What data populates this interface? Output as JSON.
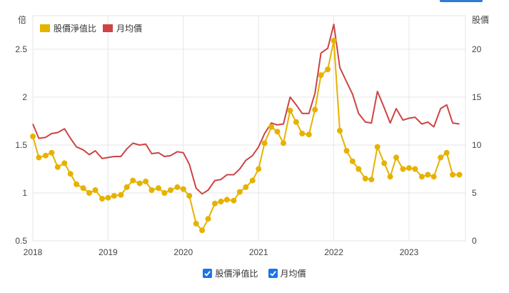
{
  "chart_data": {
    "type": "line",
    "left_axis": {
      "title": "倍",
      "ticks": [
        0.5,
        1,
        1.5,
        2,
        2.5
      ],
      "range": [
        0.5,
        2.85
      ]
    },
    "right_axis": {
      "title": "股價",
      "ticks": [
        0,
        5,
        10,
        15,
        20
      ],
      "range": [
        0,
        23.5
      ]
    },
    "x_labels": [
      "2018",
      "2019",
      "2020",
      "2021",
      "2022",
      "2023"
    ],
    "x_range": [
      2018.0,
      2023.75
    ],
    "series": [
      {
        "name": "股價淨值比",
        "axis": "left",
        "color": "#e6b200",
        "points": [
          [
            2018.0,
            1.59
          ],
          [
            2018.08,
            1.37
          ],
          [
            2018.17,
            1.39
          ],
          [
            2018.25,
            1.42
          ],
          [
            2018.33,
            1.27
          ],
          [
            2018.42,
            1.31
          ],
          [
            2018.5,
            1.2
          ],
          [
            2018.58,
            1.09
          ],
          [
            2018.67,
            1.05
          ],
          [
            2018.75,
            1.0
          ],
          [
            2018.83,
            1.03
          ],
          [
            2018.92,
            0.94
          ],
          [
            2019.0,
            0.95
          ],
          [
            2019.08,
            0.97
          ],
          [
            2019.17,
            0.98
          ],
          [
            2019.25,
            1.06
          ],
          [
            2019.33,
            1.13
          ],
          [
            2019.42,
            1.1
          ],
          [
            2019.5,
            1.12
          ],
          [
            2019.58,
            1.03
          ],
          [
            2019.67,
            1.05
          ],
          [
            2019.75,
            1.0
          ],
          [
            2019.83,
            1.03
          ],
          [
            2019.92,
            1.06
          ],
          [
            2020.0,
            1.04
          ],
          [
            2020.08,
            0.97
          ],
          [
            2020.17,
            0.68
          ],
          [
            2020.25,
            0.61
          ],
          [
            2020.33,
            0.73
          ],
          [
            2020.42,
            0.89
          ],
          [
            2020.5,
            0.91
          ],
          [
            2020.58,
            0.93
          ],
          [
            2020.67,
            0.92
          ],
          [
            2020.75,
            1.01
          ],
          [
            2020.83,
            1.06
          ],
          [
            2020.92,
            1.13
          ],
          [
            2021.0,
            1.25
          ],
          [
            2021.08,
            1.52
          ],
          [
            2021.17,
            1.69
          ],
          [
            2021.25,
            1.64
          ],
          [
            2021.33,
            1.52
          ],
          [
            2021.42,
            1.86
          ],
          [
            2021.5,
            1.74
          ],
          [
            2021.58,
            1.62
          ],
          [
            2021.67,
            1.61
          ],
          [
            2021.75,
            1.87
          ],
          [
            2021.83,
            2.23
          ],
          [
            2021.92,
            2.29
          ],
          [
            2022.0,
            2.59
          ],
          [
            2022.08,
            1.65
          ],
          [
            2022.17,
            1.44
          ],
          [
            2022.25,
            1.33
          ],
          [
            2022.33,
            1.25
          ],
          [
            2022.42,
            1.15
          ],
          [
            2022.5,
            1.14
          ],
          [
            2022.58,
            1.48
          ],
          [
            2022.67,
            1.31
          ],
          [
            2022.75,
            1.17
          ],
          [
            2022.83,
            1.37
          ],
          [
            2022.92,
            1.25
          ],
          [
            2023.0,
            1.26
          ],
          [
            2023.08,
            1.25
          ],
          [
            2023.17,
            1.17
          ],
          [
            2023.25,
            1.19
          ],
          [
            2023.33,
            1.17
          ],
          [
            2023.42,
            1.37
          ],
          [
            2023.5,
            1.42
          ],
          [
            2023.58,
            1.19
          ],
          [
            2023.67,
            1.19
          ]
        ]
      },
      {
        "name": "月均價",
        "axis": "right",
        "color": "#cc4444",
        "points": [
          [
            2018.0,
            12.2
          ],
          [
            2018.08,
            10.7
          ],
          [
            2018.17,
            10.8
          ],
          [
            2018.25,
            11.2
          ],
          [
            2018.33,
            11.3
          ],
          [
            2018.42,
            11.7
          ],
          [
            2018.5,
            10.7
          ],
          [
            2018.58,
            9.8
          ],
          [
            2018.67,
            9.5
          ],
          [
            2018.75,
            9.0
          ],
          [
            2018.83,
            9.4
          ],
          [
            2018.92,
            8.6
          ],
          [
            2019.0,
            8.7
          ],
          [
            2019.08,
            8.8
          ],
          [
            2019.17,
            8.8
          ],
          [
            2019.25,
            9.6
          ],
          [
            2019.33,
            10.2
          ],
          [
            2019.42,
            10.0
          ],
          [
            2019.5,
            10.1
          ],
          [
            2019.58,
            9.1
          ],
          [
            2019.67,
            9.2
          ],
          [
            2019.75,
            8.8
          ],
          [
            2019.83,
            8.9
          ],
          [
            2019.92,
            9.3
          ],
          [
            2020.0,
            9.2
          ],
          [
            2020.08,
            8.0
          ],
          [
            2020.17,
            5.5
          ],
          [
            2020.25,
            4.9
          ],
          [
            2020.33,
            5.3
          ],
          [
            2020.42,
            6.3
          ],
          [
            2020.5,
            6.4
          ],
          [
            2020.58,
            6.9
          ],
          [
            2020.67,
            6.9
          ],
          [
            2020.75,
            7.5
          ],
          [
            2020.83,
            8.4
          ],
          [
            2020.92,
            8.9
          ],
          [
            2021.0,
            9.8
          ],
          [
            2021.08,
            11.2
          ],
          [
            2021.17,
            12.3
          ],
          [
            2021.25,
            12.1
          ],
          [
            2021.33,
            12.2
          ],
          [
            2021.42,
            15.0
          ],
          [
            2021.5,
            14.2
          ],
          [
            2021.58,
            13.3
          ],
          [
            2021.67,
            13.3
          ],
          [
            2021.75,
            15.4
          ],
          [
            2021.83,
            19.6
          ],
          [
            2021.92,
            20.1
          ],
          [
            2022.0,
            22.6
          ],
          [
            2022.08,
            18.1
          ],
          [
            2022.17,
            16.6
          ],
          [
            2022.25,
            15.3
          ],
          [
            2022.33,
            13.3
          ],
          [
            2022.42,
            12.4
          ],
          [
            2022.5,
            12.3
          ],
          [
            2022.58,
            15.6
          ],
          [
            2022.67,
            13.9
          ],
          [
            2022.75,
            12.3
          ],
          [
            2022.83,
            13.8
          ],
          [
            2022.92,
            12.6
          ],
          [
            2023.0,
            12.8
          ],
          [
            2023.08,
            12.9
          ],
          [
            2023.17,
            12.2
          ],
          [
            2023.25,
            12.4
          ],
          [
            2023.33,
            11.9
          ],
          [
            2023.42,
            13.8
          ],
          [
            2023.5,
            14.2
          ],
          [
            2023.58,
            12.3
          ],
          [
            2023.67,
            12.2
          ]
        ]
      }
    ]
  },
  "toggles": [
    {
      "label": "股價淨值比",
      "checked": true
    },
    {
      "label": "月均價",
      "checked": true
    }
  ]
}
